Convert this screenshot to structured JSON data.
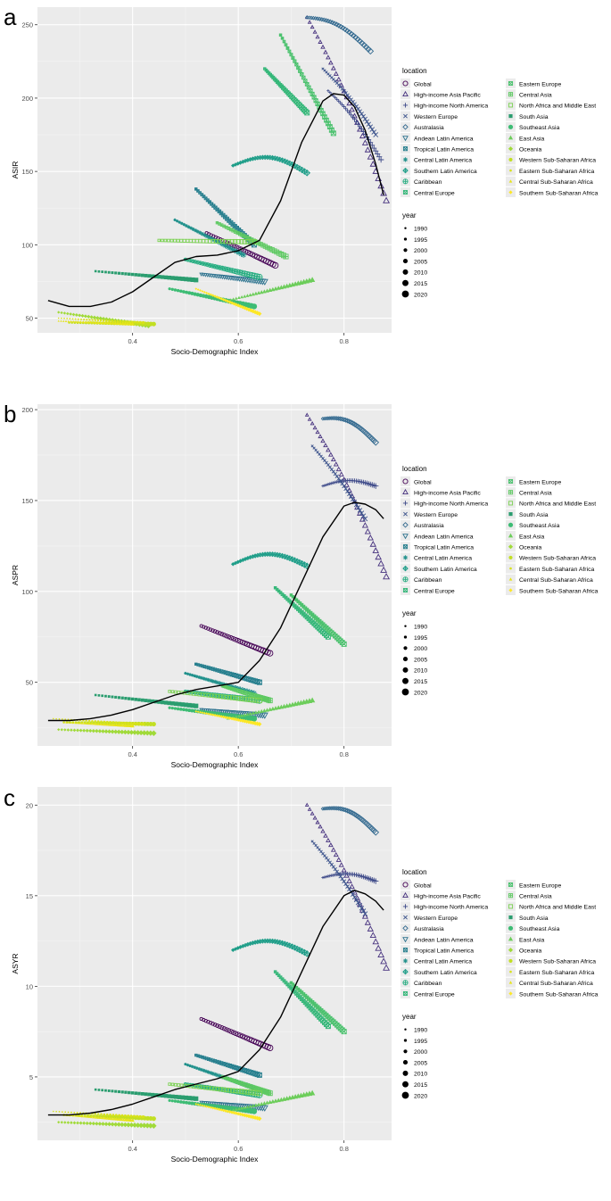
{
  "figure": {
    "location_legend_title": "location",
    "year_legend_title": "year",
    "locations": [
      {
        "name": "Global",
        "symbol": "circle-open",
        "color": "#440154"
      },
      {
        "name": "High-income Asia Pacific",
        "symbol": "triangle-open",
        "color": "#46317e"
      },
      {
        "name": "High-income North America",
        "symbol": "plus",
        "color": "#3e4a89"
      },
      {
        "name": "Western Europe",
        "symbol": "cross",
        "color": "#3b528b"
      },
      {
        "name": "Australasia",
        "symbol": "diamond-open",
        "color": "#31688e"
      },
      {
        "name": "Andean Latin America",
        "symbol": "triangle-down-open",
        "color": "#2c728e"
      },
      {
        "name": "Tropical Latin America",
        "symbol": "square-x",
        "color": "#277f8e"
      },
      {
        "name": "Central Latin America",
        "symbol": "asterisk",
        "color": "#21918c"
      },
      {
        "name": "Southern Latin America",
        "symbol": "diamond-plus",
        "color": "#1f9e89"
      },
      {
        "name": "Caribbean",
        "symbol": "circle-plus",
        "color": "#26ad81"
      },
      {
        "name": "Central Europe",
        "symbol": "square-x",
        "color": "#35b779"
      },
      {
        "name": "Eastern Europe",
        "symbol": "square-x",
        "color": "#4ac16d"
      },
      {
        "name": "Central Asia",
        "symbol": "asterisk-box",
        "color": "#5ec962"
      },
      {
        "name": "North Africa and Middle East",
        "symbol": "square-open",
        "color": "#7ad151"
      },
      {
        "name": "South Asia",
        "symbol": "square",
        "color": "#2a9d6f"
      },
      {
        "name": "Southeast Asia",
        "symbol": "circle",
        "color": "#3dbc74"
      },
      {
        "name": "East Asia",
        "symbol": "triangle",
        "color": "#6ccd5a"
      },
      {
        "name": "Oceania",
        "symbol": "diamond",
        "color": "#a0da39"
      },
      {
        "name": "Western Sub-Saharan Africa",
        "symbol": "circle-small",
        "color": "#c2df23"
      },
      {
        "name": "Eastern Sub-Saharan Africa",
        "symbol": "dot",
        "color": "#d8e219"
      },
      {
        "name": "Central Sub-Saharan Africa",
        "symbol": "triangle-small",
        "color": "#e7e419"
      },
      {
        "name": "Southern Sub-Saharan Africa",
        "symbol": "diamond-small",
        "color": "#fde725"
      }
    ],
    "years": [
      "1990",
      "1995",
      "2000",
      "2005",
      "2010",
      "2015",
      "2020"
    ]
  },
  "chart_data": [
    {
      "panel_letter": "a",
      "type": "scatter",
      "xlabel": "Socio-Demographic Index",
      "ylabel": "ASIR",
      "xlim": [
        0.22,
        0.89
      ],
      "ylim": [
        40,
        262
      ],
      "xticks": [
        0.4,
        0.6,
        0.8
      ],
      "xtick_labels": [
        "0.4",
        "0.6",
        "0.8"
      ],
      "yticks": [
        50,
        100,
        150,
        200,
        250
      ],
      "ytick_labels": [
        "50",
        "100",
        "150",
        "200",
        "250"
      ],
      "smooth_curve": {
        "x": [
          0.24,
          0.28,
          0.32,
          0.36,
          0.4,
          0.44,
          0.48,
          0.52,
          0.56,
          0.6,
          0.64,
          0.68,
          0.72,
          0.76,
          0.78,
          0.8,
          0.82,
          0.84,
          0.86,
          0.875
        ],
        "y": [
          62,
          58,
          58,
          61,
          68,
          78,
          88,
          92,
          93,
          96,
          103,
          130,
          170,
          198,
          203,
          202,
          194,
          178,
          155,
          134
        ]
      },
      "series": [
        {
          "name": "Global",
          "x0": 0.54,
          "x1": 0.67,
          "y0": 108,
          "y1": 86,
          "wave": 0
        },
        {
          "name": "High-income Asia Pacific",
          "x0": 0.73,
          "x1": 0.88,
          "y0": 255,
          "y1": 130,
          "wave": 8
        },
        {
          "name": "High-income North America",
          "x0": 0.77,
          "x1": 0.87,
          "y0": 205,
          "y1": 158,
          "wave": 4
        },
        {
          "name": "Western Europe",
          "x0": 0.76,
          "x1": 0.86,
          "y0": 220,
          "y1": 175,
          "wave": 3
        },
        {
          "name": "Australasia",
          "x0": 0.73,
          "x1": 0.85,
          "y0": 255,
          "y1": 232,
          "wave": 6
        },
        {
          "name": "Andean Latin America",
          "x0": 0.53,
          "x1": 0.65,
          "y0": 80,
          "y1": 75,
          "wave": 0
        },
        {
          "name": "Tropical Latin America",
          "x0": 0.52,
          "x1": 0.63,
          "y0": 138,
          "y1": 100,
          "wave": 0
        },
        {
          "name": "Central Latin America",
          "x0": 0.48,
          "x1": 0.61,
          "y0": 117,
          "y1": 93,
          "wave": 0
        },
        {
          "name": "Southern Latin America",
          "x0": 0.59,
          "x1": 0.73,
          "y0": 154,
          "y1": 149,
          "wave": 8
        },
        {
          "name": "Caribbean",
          "x0": 0.5,
          "x1": 0.64,
          "y0": 90,
          "y1": 78,
          "wave": 0
        },
        {
          "name": "Central Europe",
          "x0": 0.65,
          "x1": 0.73,
          "y0": 220,
          "y1": 190,
          "wave": 0
        },
        {
          "name": "Eastern Europe",
          "x0": 0.68,
          "x1": 0.78,
          "y0": 243,
          "y1": 176,
          "wave": 0
        },
        {
          "name": "Central Asia",
          "x0": 0.56,
          "x1": 0.69,
          "y0": 115,
          "y1": 92,
          "wave": 0
        },
        {
          "name": "North Africa and Middle East",
          "x0": 0.45,
          "x1": 0.63,
          "y0": 103,
          "y1": 102,
          "wave": 0
        },
        {
          "name": "South Asia",
          "x0": 0.33,
          "x1": 0.52,
          "y0": 82,
          "y1": 76,
          "wave": 0
        },
        {
          "name": "Southeast Asia",
          "x0": 0.47,
          "x1": 0.63,
          "y0": 70,
          "y1": 58,
          "wave": 0
        },
        {
          "name": "East Asia",
          "x0": 0.58,
          "x1": 0.74,
          "y0": 62,
          "y1": 76,
          "wave": 0
        },
        {
          "name": "Oceania",
          "x0": 0.26,
          "x1": 0.43,
          "y0": 54,
          "y1": 45,
          "wave": 0
        },
        {
          "name": "Western Sub-Saharan Africa",
          "x0": 0.28,
          "x1": 0.44,
          "y0": 47,
          "y1": 46,
          "wave": 0
        },
        {
          "name": "Eastern Sub-Saharan Africa",
          "x0": 0.26,
          "x1": 0.42,
          "y0": 50,
          "y1": 47,
          "wave": 0
        },
        {
          "name": "Central Sub-Saharan Africa",
          "x0": 0.26,
          "x1": 0.4,
          "y0": 48,
          "y1": 46,
          "wave": 0
        },
        {
          "name": "Southern Sub-Saharan Africa",
          "x0": 0.52,
          "x1": 0.64,
          "y0": 70,
          "y1": 53,
          "wave": 0
        }
      ]
    },
    {
      "panel_letter": "b",
      "type": "scatter",
      "xlabel": "Socio-Demographic Index",
      "ylabel": "ASPR",
      "xlim": [
        0.22,
        0.89
      ],
      "ylim": [
        15,
        203
      ],
      "xticks": [
        0.4,
        0.6,
        0.8
      ],
      "xtick_labels": [
        "0.4",
        "0.6",
        "0.8"
      ],
      "yticks": [
        50,
        100,
        150,
        200
      ],
      "ytick_labels": [
        "50",
        "100",
        "150",
        "200"
      ],
      "smooth_curve": {
        "x": [
          0.24,
          0.28,
          0.32,
          0.36,
          0.4,
          0.44,
          0.48,
          0.52,
          0.56,
          0.6,
          0.64,
          0.68,
          0.72,
          0.76,
          0.8,
          0.82,
          0.84,
          0.86,
          0.875
        ],
        "y": [
          29,
          29,
          30,
          32,
          35,
          39,
          43,
          46,
          48,
          50,
          62,
          80,
          105,
          130,
          147,
          149,
          148,
          145,
          140
        ]
      },
      "series": [
        {
          "name": "Global",
          "x0": 0.53,
          "x1": 0.66,
          "y0": 81,
          "y1": 66,
          "wave": 0
        },
        {
          "name": "High-income Asia Pacific",
          "x0": 0.73,
          "x1": 0.88,
          "y0": 197,
          "y1": 108,
          "wave": 6
        },
        {
          "name": "High-income North America",
          "x0": 0.76,
          "x1": 0.86,
          "y0": 158,
          "y1": 158,
          "wave": 3
        },
        {
          "name": "Western Europe",
          "x0": 0.74,
          "x1": 0.84,
          "y0": 180,
          "y1": 140,
          "wave": 2
        },
        {
          "name": "Australasia",
          "x0": 0.76,
          "x1": 0.86,
          "y0": 195,
          "y1": 182,
          "wave": 5
        },
        {
          "name": "Andean Latin America",
          "x0": 0.53,
          "x1": 0.65,
          "y0": 35,
          "y1": 32,
          "wave": 0
        },
        {
          "name": "Tropical Latin America",
          "x0": 0.52,
          "x1": 0.64,
          "y0": 60,
          "y1": 50,
          "wave": 0
        },
        {
          "name": "Central Latin America",
          "x0": 0.5,
          "x1": 0.63,
          "y0": 55,
          "y1": 44,
          "wave": 0
        },
        {
          "name": "Southern Latin America",
          "x0": 0.59,
          "x1": 0.73,
          "y0": 115,
          "y1": 114,
          "wave": 6
        },
        {
          "name": "Caribbean",
          "x0": 0.5,
          "x1": 0.64,
          "y0": 45,
          "y1": 40,
          "wave": 0
        },
        {
          "name": "Central Europe",
          "x0": 0.67,
          "x1": 0.77,
          "y0": 102,
          "y1": 75,
          "wave": 0
        },
        {
          "name": "Eastern Europe",
          "x0": 0.7,
          "x1": 0.8,
          "y0": 98,
          "y1": 71,
          "wave": 0
        },
        {
          "name": "Central Asia",
          "x0": 0.57,
          "x1": 0.66,
          "y0": 48,
          "y1": 40,
          "wave": 0
        },
        {
          "name": "North Africa and Middle East",
          "x0": 0.47,
          "x1": 0.64,
          "y0": 45,
          "y1": 40,
          "wave": 0
        },
        {
          "name": "South Asia",
          "x0": 0.33,
          "x1": 0.52,
          "y0": 43,
          "y1": 37,
          "wave": 0
        },
        {
          "name": "Southeast Asia",
          "x0": 0.47,
          "x1": 0.63,
          "y0": 36,
          "y1": 30,
          "wave": 0
        },
        {
          "name": "East Asia",
          "x0": 0.58,
          "x1": 0.74,
          "y0": 30,
          "y1": 40,
          "wave": 0
        },
        {
          "name": "Oceania",
          "x0": 0.26,
          "x1": 0.44,
          "y0": 24,
          "y1": 22,
          "wave": 0
        },
        {
          "name": "Western Sub-Saharan Africa",
          "x0": 0.27,
          "x1": 0.44,
          "y0": 28,
          "y1": 27,
          "wave": 0
        },
        {
          "name": "Eastern Sub-Saharan Africa",
          "x0": 0.25,
          "x1": 0.42,
          "y0": 30,
          "y1": 27,
          "wave": 0
        },
        {
          "name": "Central Sub-Saharan Africa",
          "x0": 0.27,
          "x1": 0.4,
          "y0": 28,
          "y1": 26,
          "wave": 0
        },
        {
          "name": "Southern Sub-Saharan Africa",
          "x0": 0.52,
          "x1": 0.64,
          "y0": 34,
          "y1": 27,
          "wave": 0
        }
      ]
    },
    {
      "panel_letter": "c",
      "type": "scatter",
      "xlabel": "Socio-Demographic Index",
      "ylabel": "ASYR",
      "xlim": [
        0.22,
        0.89
      ],
      "ylim": [
        1.5,
        21
      ],
      "xticks": [
        0.4,
        0.6,
        0.8
      ],
      "xtick_labels": [
        "0.4",
        "0.6",
        "0.8"
      ],
      "yticks": [
        5,
        10,
        15,
        20
      ],
      "ytick_labels": [
        "5",
        "10",
        "15",
        "20"
      ],
      "smooth_curve": {
        "x": [
          0.24,
          0.28,
          0.32,
          0.36,
          0.4,
          0.44,
          0.48,
          0.52,
          0.56,
          0.6,
          0.64,
          0.68,
          0.72,
          0.76,
          0.8,
          0.82,
          0.84,
          0.86,
          0.875
        ],
        "y": [
          2.9,
          2.9,
          3.0,
          3.2,
          3.5,
          3.9,
          4.3,
          4.6,
          4.9,
          5.3,
          6.5,
          8.3,
          10.8,
          13.3,
          15.0,
          15.3,
          15.1,
          14.7,
          14.2
        ]
      },
      "series": [
        {
          "name": "Global",
          "x0": 0.53,
          "x1": 0.66,
          "y0": 8.2,
          "y1": 6.6,
          "wave": 0
        },
        {
          "name": "High-income Asia Pacific",
          "x0": 0.73,
          "x1": 0.88,
          "y0": 20.0,
          "y1": 11.0,
          "wave": 0.6
        },
        {
          "name": "High-income North America",
          "x0": 0.76,
          "x1": 0.86,
          "y0": 16.0,
          "y1": 15.8,
          "wave": 0.3
        },
        {
          "name": "Western Europe",
          "x0": 0.74,
          "x1": 0.84,
          "y0": 18.0,
          "y1": 14.0,
          "wave": 0.2
        },
        {
          "name": "Australasia",
          "x0": 0.76,
          "x1": 0.86,
          "y0": 19.8,
          "y1": 18.5,
          "wave": 0.5
        },
        {
          "name": "Andean Latin America",
          "x0": 0.53,
          "x1": 0.65,
          "y0": 3.6,
          "y1": 3.3,
          "wave": 0
        },
        {
          "name": "Tropical Latin America",
          "x0": 0.52,
          "x1": 0.64,
          "y0": 6.2,
          "y1": 5.1,
          "wave": 0
        },
        {
          "name": "Central Latin America",
          "x0": 0.5,
          "x1": 0.63,
          "y0": 5.7,
          "y1": 4.4,
          "wave": 0
        },
        {
          "name": "Southern Latin America",
          "x0": 0.59,
          "x1": 0.73,
          "y0": 12.0,
          "y1": 11.8,
          "wave": 0.6
        },
        {
          "name": "Caribbean",
          "x0": 0.5,
          "x1": 0.64,
          "y0": 4.6,
          "y1": 4.0,
          "wave": 0
        },
        {
          "name": "Central Europe",
          "x0": 0.67,
          "x1": 0.77,
          "y0": 10.8,
          "y1": 7.8,
          "wave": 0
        },
        {
          "name": "Eastern Europe",
          "x0": 0.7,
          "x1": 0.8,
          "y0": 10.2,
          "y1": 7.5,
          "wave": 0
        },
        {
          "name": "Central Asia",
          "x0": 0.57,
          "x1": 0.66,
          "y0": 5.0,
          "y1": 4.1,
          "wave": 0
        },
        {
          "name": "North Africa and Middle East",
          "x0": 0.47,
          "x1": 0.64,
          "y0": 4.6,
          "y1": 4.1,
          "wave": 0
        },
        {
          "name": "South Asia",
          "x0": 0.33,
          "x1": 0.52,
          "y0": 4.3,
          "y1": 3.8,
          "wave": 0
        },
        {
          "name": "Southeast Asia",
          "x0": 0.47,
          "x1": 0.63,
          "y0": 3.7,
          "y1": 3.1,
          "wave": 0
        },
        {
          "name": "East Asia",
          "x0": 0.58,
          "x1": 0.74,
          "y0": 3.1,
          "y1": 4.1,
          "wave": 0
        },
        {
          "name": "Oceania",
          "x0": 0.26,
          "x1": 0.44,
          "y0": 2.5,
          "y1": 2.3,
          "wave": 0
        },
        {
          "name": "Western Sub-Saharan Africa",
          "x0": 0.27,
          "x1": 0.44,
          "y0": 2.9,
          "y1": 2.7,
          "wave": 0
        },
        {
          "name": "Eastern Sub-Saharan Africa",
          "x0": 0.25,
          "x1": 0.42,
          "y0": 3.1,
          "y1": 2.8,
          "wave": 0
        },
        {
          "name": "Central Sub-Saharan Africa",
          "x0": 0.27,
          "x1": 0.4,
          "y0": 2.9,
          "y1": 2.6,
          "wave": 0
        },
        {
          "name": "Southern Sub-Saharan Africa",
          "x0": 0.52,
          "x1": 0.64,
          "y0": 3.5,
          "y1": 2.7,
          "wave": 0
        }
      ]
    }
  ]
}
